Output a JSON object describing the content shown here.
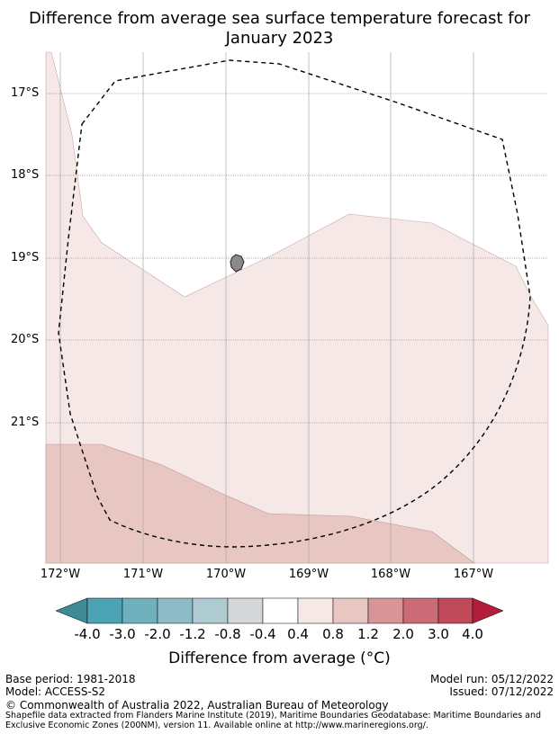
{
  "title_line1": "Difference from average sea surface temperature forecast for",
  "title_line2": "January 2023",
  "lat_labels": [
    "17°S",
    "18°S",
    "19°S",
    "20°S",
    "21°S"
  ],
  "lon_labels": [
    "172°W",
    "171°W",
    "170°W",
    "169°W",
    "168°W",
    "167°W"
  ],
  "colorbar": {
    "title": "Difference from average (°C)",
    "tick_labels": [
      "-4.0",
      "-3.0",
      "-2.0",
      "-1.2",
      "-0.8",
      "-0.4",
      "0.4",
      "0.8",
      "1.2",
      "2.0",
      "3.0",
      "4.0"
    ],
    "colors": [
      "#3e8a95",
      "#4ba3b3",
      "#6eb1bd",
      "#8dbac4",
      "#adcbd0",
      "#d4d8d8",
      "#ffffff",
      "#f5e8e7",
      "#e8c6c2",
      "#d9949a",
      "#cb6b78",
      "#c04a5a",
      "#b21d3b"
    ]
  },
  "footer": {
    "base_period": "Base period: 1981-2018",
    "model": "Model: ACCESS-S2",
    "model_run": "Model run: 05/12/2022",
    "issued": "Issued: 07/12/2022",
    "copyright": "© Commonwealth of Australia 2022, Australian Bureau of Meteorology",
    "shapefile_note_1": "Shapefile data extracted from Flanders Marine Institute (2019), Maritime Boundaries Geodatabase: Maritime Boundaries and",
    "shapefile_note_2": "Exclusive Economic Zones (200NM), version 11. Available online at http://www.marineregions.org/."
  }
}
